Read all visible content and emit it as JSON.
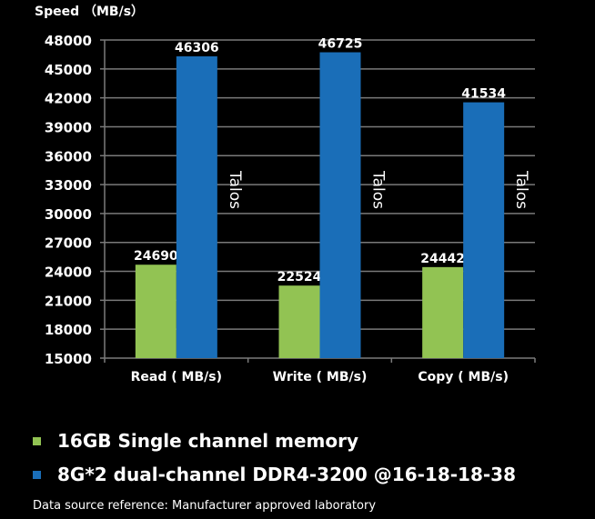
{
  "chart_data": {
    "type": "bar",
    "ylabel": "Speed （MB/s）",
    "ylim": [
      15000,
      48000
    ],
    "yticks": [
      15000,
      18000,
      21000,
      24000,
      27000,
      30000,
      33000,
      36000,
      39000,
      42000,
      45000,
      48000
    ],
    "grid": true,
    "categories": [
      "Read ( MB/s)",
      "Write ( MB/s)",
      "Copy ( MB/s)"
    ],
    "series": [
      {
        "name": "16GB Single channel memory",
        "values": [
          24690,
          22524,
          24442
        ],
        "color": "#92c353"
      },
      {
        "name": "8G*2 dual-channel DDR4-3200 @16-18-18-38",
        "values": [
          46306,
          46725,
          41534
        ],
        "color": "#1a6eb8",
        "annotation": "Talos"
      }
    ],
    "legend_position": "bottom"
  },
  "footer": "Data source reference: Manufacturer approved laboratory"
}
